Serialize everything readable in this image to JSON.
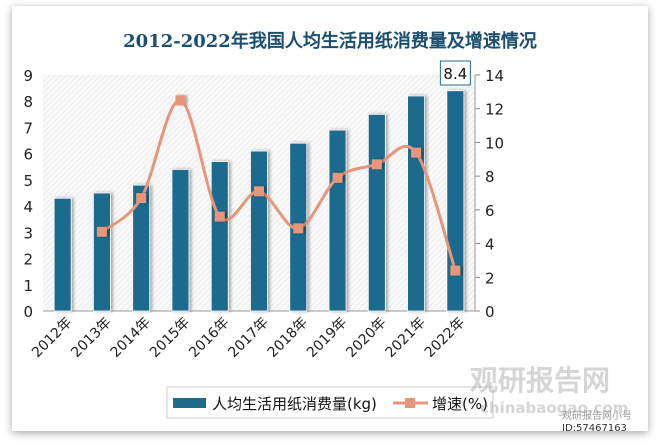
{
  "chart_data": {
    "type": "bar+line",
    "title": "2012-2022年我国人均生活用纸消费量及增速情况",
    "categories": [
      "2012年",
      "2013年",
      "2014年",
      "2015年",
      "2016年",
      "2017年",
      "2018年",
      "2019年",
      "2020年",
      "2021年",
      "2022年"
    ],
    "series": [
      {
        "name": "人均生活用纸消费量(kg)",
        "type": "bar",
        "axis": "left",
        "color": "#1f6b8e",
        "values": [
          4.3,
          4.5,
          4.8,
          5.4,
          5.7,
          6.1,
          6.4,
          6.9,
          7.5,
          8.2,
          8.4
        ]
      },
      {
        "name": "增速(%)",
        "type": "line",
        "axis": "right",
        "color": "#e8967a",
        "values": [
          null,
          4.7,
          6.7,
          12.5,
          5.6,
          7.1,
          4.9,
          7.9,
          8.7,
          9.4,
          2.4
        ]
      }
    ],
    "annotations": [
      {
        "category": "2022年",
        "text": "8.4"
      }
    ],
    "y_left": {
      "range": [
        0,
        9
      ],
      "ticks": [
        "0",
        "1",
        "2",
        "3",
        "4",
        "5",
        "6",
        "7",
        "8",
        "9"
      ]
    },
    "y_right": {
      "range": [
        0,
        14
      ],
      "ticks": [
        "0",
        "2",
        "4",
        "6",
        "8",
        "10",
        "12",
        "14"
      ]
    },
    "legend": "bottom",
    "grid": false
  },
  "watermark": {
    "brand": "观研报告网",
    "url": "chinabaogao.com",
    "account": "观研报告网小号",
    "id": "ID:57467163"
  }
}
